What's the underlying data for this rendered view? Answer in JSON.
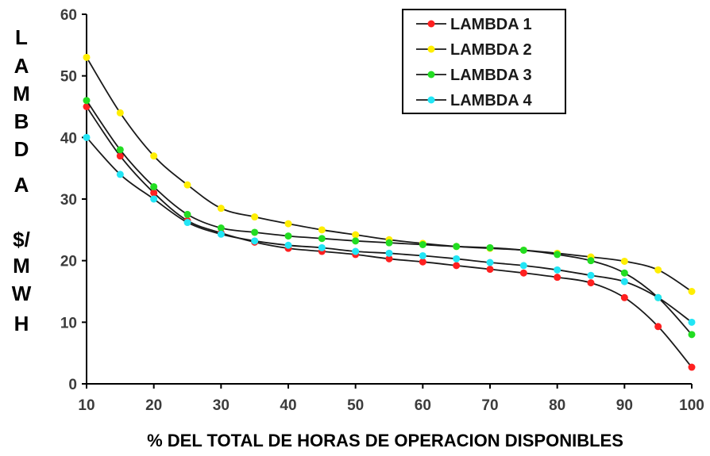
{
  "chart_data": {
    "type": "line",
    "xlabel": "% DEL TOTAL DE HORAS DE OPERACION DISPONIBLES",
    "ylabel_lines": [
      "L",
      "A",
      "M",
      "B",
      "D",
      "A",
      "",
      "$/",
      "M",
      "W",
      "H"
    ],
    "xlim": [
      10,
      100
    ],
    "ylim": [
      0,
      60
    ],
    "x_ticks": [
      10,
      20,
      30,
      40,
      50,
      60,
      70,
      80,
      90,
      100
    ],
    "y_ticks": [
      0,
      10,
      20,
      30,
      40,
      50,
      60
    ],
    "grid": false,
    "legend_position": "top-right",
    "x": [
      10,
      15,
      20,
      25,
      30,
      35,
      40,
      45,
      50,
      55,
      60,
      65,
      70,
      75,
      80,
      85,
      90,
      95,
      100
    ],
    "series": [
      {
        "name": "LAMBDA 1",
        "color": "#ff2020",
        "values": [
          45,
          37,
          31,
          26.5,
          24.5,
          23,
          22,
          21.5,
          21,
          20.3,
          19.8,
          19.2,
          18.6,
          18,
          17.3,
          16.4,
          14,
          9.3,
          2.7
        ]
      },
      {
        "name": "LAMBDA 2",
        "color": "#ffee00",
        "values": [
          53,
          44,
          37,
          32.3,
          28.5,
          27.1,
          26,
          25,
          24.2,
          23.4,
          22.8,
          22.3,
          22,
          21.7,
          21.2,
          20.6,
          19.9,
          18.5,
          15
        ]
      },
      {
        "name": "LAMBDA 3",
        "color": "#22dd22",
        "values": [
          46,
          38,
          32,
          27.5,
          25.3,
          24.6,
          24,
          23.6,
          23.2,
          22.9,
          22.6,
          22.3,
          22.1,
          21.7,
          21,
          20,
          18,
          14,
          8
        ]
      },
      {
        "name": "LAMBDA 4",
        "color": "#22e5f5",
        "values": [
          40,
          34,
          30,
          26.2,
          24.3,
          23.2,
          22.5,
          22.1,
          21.5,
          21.2,
          20.8,
          20.3,
          19.7,
          19.2,
          18.5,
          17.6,
          16.6,
          14,
          10
        ]
      }
    ]
  }
}
